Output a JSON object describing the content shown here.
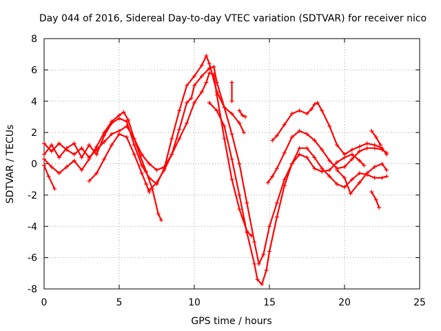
{
  "chart_data": {
    "type": "scatter",
    "title": "Day 044 of 2016, Sidereal Day-to-day VTEC variation (SDTVAR) for receiver nico",
    "xlabel": "GPS time / hours",
    "ylabel": "SDTVAR / TECUs",
    "xlim": [
      0,
      25
    ],
    "ylim": [
      -8,
      8
    ],
    "x_ticks": [
      0,
      5,
      10,
      15,
      20,
      25
    ],
    "y_ticks": [
      -8,
      -6,
      -4,
      -2,
      0,
      2,
      4,
      6,
      8
    ],
    "grid": true,
    "marker": "+",
    "color": "#ff0000",
    "series": [
      {
        "points": [
          [
            0,
            1.3
          ],
          [
            0.5,
            0.8
          ],
          [
            1,
            1.3
          ],
          [
            1.5,
            0.9
          ],
          [
            2,
            0.6
          ],
          [
            2.5,
            1.0
          ],
          [
            3,
            0.4
          ],
          [
            3.5,
            0.9
          ],
          [
            4,
            1.4
          ],
          [
            4.5,
            1.9
          ],
          [
            5,
            2.1
          ],
          [
            5.5,
            2.4
          ],
          [
            6,
            1.6
          ],
          [
            6.4,
            0.5
          ],
          [
            6.8,
            -0.5
          ],
          [
            7.2,
            -1.6
          ],
          [
            7.6,
            -3.2
          ],
          [
            7.8,
            -3.6
          ]
        ]
      },
      {
        "points": [
          [
            0,
            0.6
          ],
          [
            0.5,
            1.2
          ],
          [
            1,
            0.4
          ],
          [
            1.5,
            1.0
          ],
          [
            2,
            1.3
          ],
          [
            2.5,
            0.4
          ],
          [
            3,
            1.2
          ],
          [
            3.5,
            0.6
          ],
          [
            4,
            1.8
          ],
          [
            4.5,
            2.6
          ],
          [
            5,
            2.9
          ],
          [
            5.5,
            2.7
          ],
          [
            6,
            1.2
          ],
          [
            6.5,
            -0.1
          ],
          [
            7,
            -0.9
          ],
          [
            7.5,
            -1.3
          ],
          [
            8,
            -0.3
          ],
          [
            8.5,
            1.6
          ],
          [
            9,
            3.4
          ],
          [
            9.5,
            5.0
          ],
          [
            10,
            5.6
          ],
          [
            10.5,
            6.3
          ],
          [
            10.8,
            6.9
          ],
          [
            11,
            6.4
          ],
          [
            11.5,
            4.6
          ],
          [
            12,
            3.6
          ],
          [
            12.5,
            3.2
          ],
          [
            13,
            2.6
          ],
          [
            13.3,
            2.0
          ]
        ]
      },
      {
        "points": [
          [
            0,
            -0.1
          ],
          [
            0.3,
            -0.8
          ],
          [
            0.7,
            -1.6
          ]
        ]
      },
      {
        "points": [
          [
            0,
            0.3
          ],
          [
            0.5,
            -0.2
          ],
          [
            1,
            -0.6
          ],
          [
            1.5,
            -0.2
          ],
          [
            2,
            0.2
          ],
          [
            2.5,
            -0.4
          ],
          [
            3,
            0.3
          ],
          [
            3.5,
            1.1
          ],
          [
            4,
            2.0
          ],
          [
            4.5,
            2.7
          ],
          [
            5,
            3.1
          ],
          [
            5.3,
            3.3
          ],
          [
            5.6,
            2.8
          ],
          [
            6,
            1.6
          ],
          [
            6.5,
            0.6
          ],
          [
            7,
            0.0
          ],
          [
            7.5,
            -0.4
          ],
          [
            8,
            -0.2
          ],
          [
            8.5,
            0.6
          ],
          [
            9,
            2.2
          ],
          [
            9.5,
            3.9
          ],
          [
            9.8,
            4.2
          ],
          [
            10,
            5.0
          ],
          [
            10.5,
            5.6
          ],
          [
            11,
            6.1
          ],
          [
            11.3,
            6.2
          ],
          [
            11.5,
            5.2
          ],
          [
            12,
            3.6
          ],
          [
            12.5,
            1.9
          ],
          [
            13,
            0.0
          ],
          [
            13.5,
            -2.5
          ],
          [
            14,
            -5.0
          ],
          [
            14.3,
            -6.4
          ],
          [
            14.6,
            -5.8
          ],
          [
            15,
            -4.0
          ],
          [
            15.5,
            -2.5
          ],
          [
            16,
            -1.0
          ],
          [
            16.5,
            0.0
          ],
          [
            17,
            0.6
          ],
          [
            17.5,
            0.4
          ],
          [
            18,
            -0.3
          ],
          [
            18.5,
            -0.5
          ],
          [
            19,
            -0.4
          ],
          [
            19.5,
            0.1
          ],
          [
            20,
            0.4
          ],
          [
            20.5,
            0.6
          ],
          [
            21,
            0.2
          ],
          [
            21.3,
            -0.1
          ]
        ]
      },
      {
        "points": [
          [
            3,
            -1.1
          ],
          [
            3.5,
            -0.6
          ],
          [
            4,
            0.3
          ],
          [
            4.5,
            1.2
          ],
          [
            5,
            1.9
          ],
          [
            5.5,
            1.7
          ],
          [
            6,
            0.6
          ],
          [
            6.5,
            -0.6
          ],
          [
            6.8,
            -1.3
          ],
          [
            7,
            -1.8
          ]
        ]
      },
      {
        "points": [
          [
            7,
            -1.7
          ],
          [
            7.5,
            -1.2
          ],
          [
            8,
            -0.4
          ],
          [
            8.5,
            0.6
          ],
          [
            9,
            1.6
          ],
          [
            9.5,
            2.6
          ],
          [
            10,
            3.9
          ],
          [
            10.5,
            4.6
          ],
          [
            10.8,
            5.2
          ],
          [
            11,
            5.8
          ],
          [
            11.3,
            5.7
          ],
          [
            11.5,
            4.4
          ],
          [
            12,
            1.6
          ],
          [
            12.5,
            -1.0
          ],
          [
            13,
            -2.9
          ],
          [
            13.5,
            -4.3
          ],
          [
            13.8,
            -4.6
          ]
        ]
      },
      {
        "points": [
          [
            11,
            3.9
          ],
          [
            11.5,
            3.4
          ],
          [
            12,
            2.4
          ],
          [
            12.5,
            0.3
          ],
          [
            13,
            -2.0
          ],
          [
            13.5,
            -4.4
          ],
          [
            14,
            -6.4
          ],
          [
            14.2,
            -7.4
          ],
          [
            14.5,
            -7.7
          ],
          [
            14.8,
            -6.8
          ],
          [
            15,
            -5.6
          ],
          [
            15.5,
            -3.4
          ],
          [
            16,
            -1.4
          ],
          [
            16.5,
            0.0
          ],
          [
            17,
            1.0
          ],
          [
            17.5,
            1.0
          ],
          [
            18,
            0.4
          ],
          [
            18.5,
            -0.3
          ],
          [
            19,
            -0.8
          ],
          [
            19.5,
            -1.3
          ],
          [
            20,
            -1.5
          ],
          [
            20.5,
            -1.0
          ],
          [
            21,
            -0.6
          ],
          [
            21.5,
            -0.7
          ],
          [
            22,
            -0.9
          ],
          [
            22.5,
            -0.9
          ],
          [
            22.8,
            -0.8
          ]
        ]
      },
      {
        "points": [
          [
            12.5,
            5.2
          ],
          [
            12.5,
            4.0
          ]
        ]
      },
      {
        "points": [
          [
            13,
            3.4
          ],
          [
            13.2,
            3.1
          ],
          [
            13.4,
            3.0
          ]
        ]
      },
      {
        "points": [
          [
            14.9,
            -1.2
          ],
          [
            15.2,
            -0.8
          ],
          [
            15.5,
            -0.3
          ],
          [
            16,
            0.7
          ],
          [
            16.5,
            1.7
          ],
          [
            17,
            2.1
          ],
          [
            17.5,
            1.9
          ],
          [
            18,
            1.5
          ],
          [
            18.5,
            0.9
          ],
          [
            19,
            0.2
          ],
          [
            19.5,
            -0.3
          ],
          [
            20,
            -0.2
          ],
          [
            20.5,
            0.3
          ],
          [
            21,
            0.8
          ],
          [
            21.5,
            1.0
          ],
          [
            22,
            1.0
          ],
          [
            22.5,
            0.9
          ],
          [
            22.8,
            0.7
          ]
        ]
      },
      {
        "points": [
          [
            15.2,
            1.5
          ],
          [
            15.5,
            1.8
          ],
          [
            16,
            2.5
          ],
          [
            16.5,
            3.2
          ],
          [
            17,
            3.4
          ],
          [
            17.5,
            3.2
          ],
          [
            17.8,
            3.5
          ],
          [
            18,
            3.8
          ],
          [
            18.2,
            3.9
          ],
          [
            18.5,
            3.4
          ],
          [
            19,
            2.4
          ],
          [
            19.5,
            1.2
          ],
          [
            20,
            0.6
          ],
          [
            20.5,
            0.9
          ],
          [
            21,
            1.1
          ],
          [
            21.5,
            1.3
          ],
          [
            22,
            1.2
          ],
          [
            22.5,
            1.0
          ],
          [
            22.8,
            0.6
          ]
        ]
      },
      {
        "points": [
          [
            19.5,
            -0.4
          ],
          [
            20,
            -0.9
          ],
          [
            20.4,
            -1.9
          ],
          [
            21,
            -1.2
          ],
          [
            21.5,
            -0.6
          ],
          [
            22,
            -0.2
          ],
          [
            22.5,
            0.0
          ],
          [
            22.8,
            -0.4
          ]
        ]
      },
      {
        "points": [
          [
            21.8,
            2.1
          ],
          [
            22.1,
            1.7
          ],
          [
            22.4,
            1.2
          ]
        ]
      },
      {
        "points": [
          [
            21.8,
            -1.8
          ],
          [
            22.1,
            -2.3
          ],
          [
            22.3,
            -2.8
          ]
        ]
      }
    ]
  }
}
